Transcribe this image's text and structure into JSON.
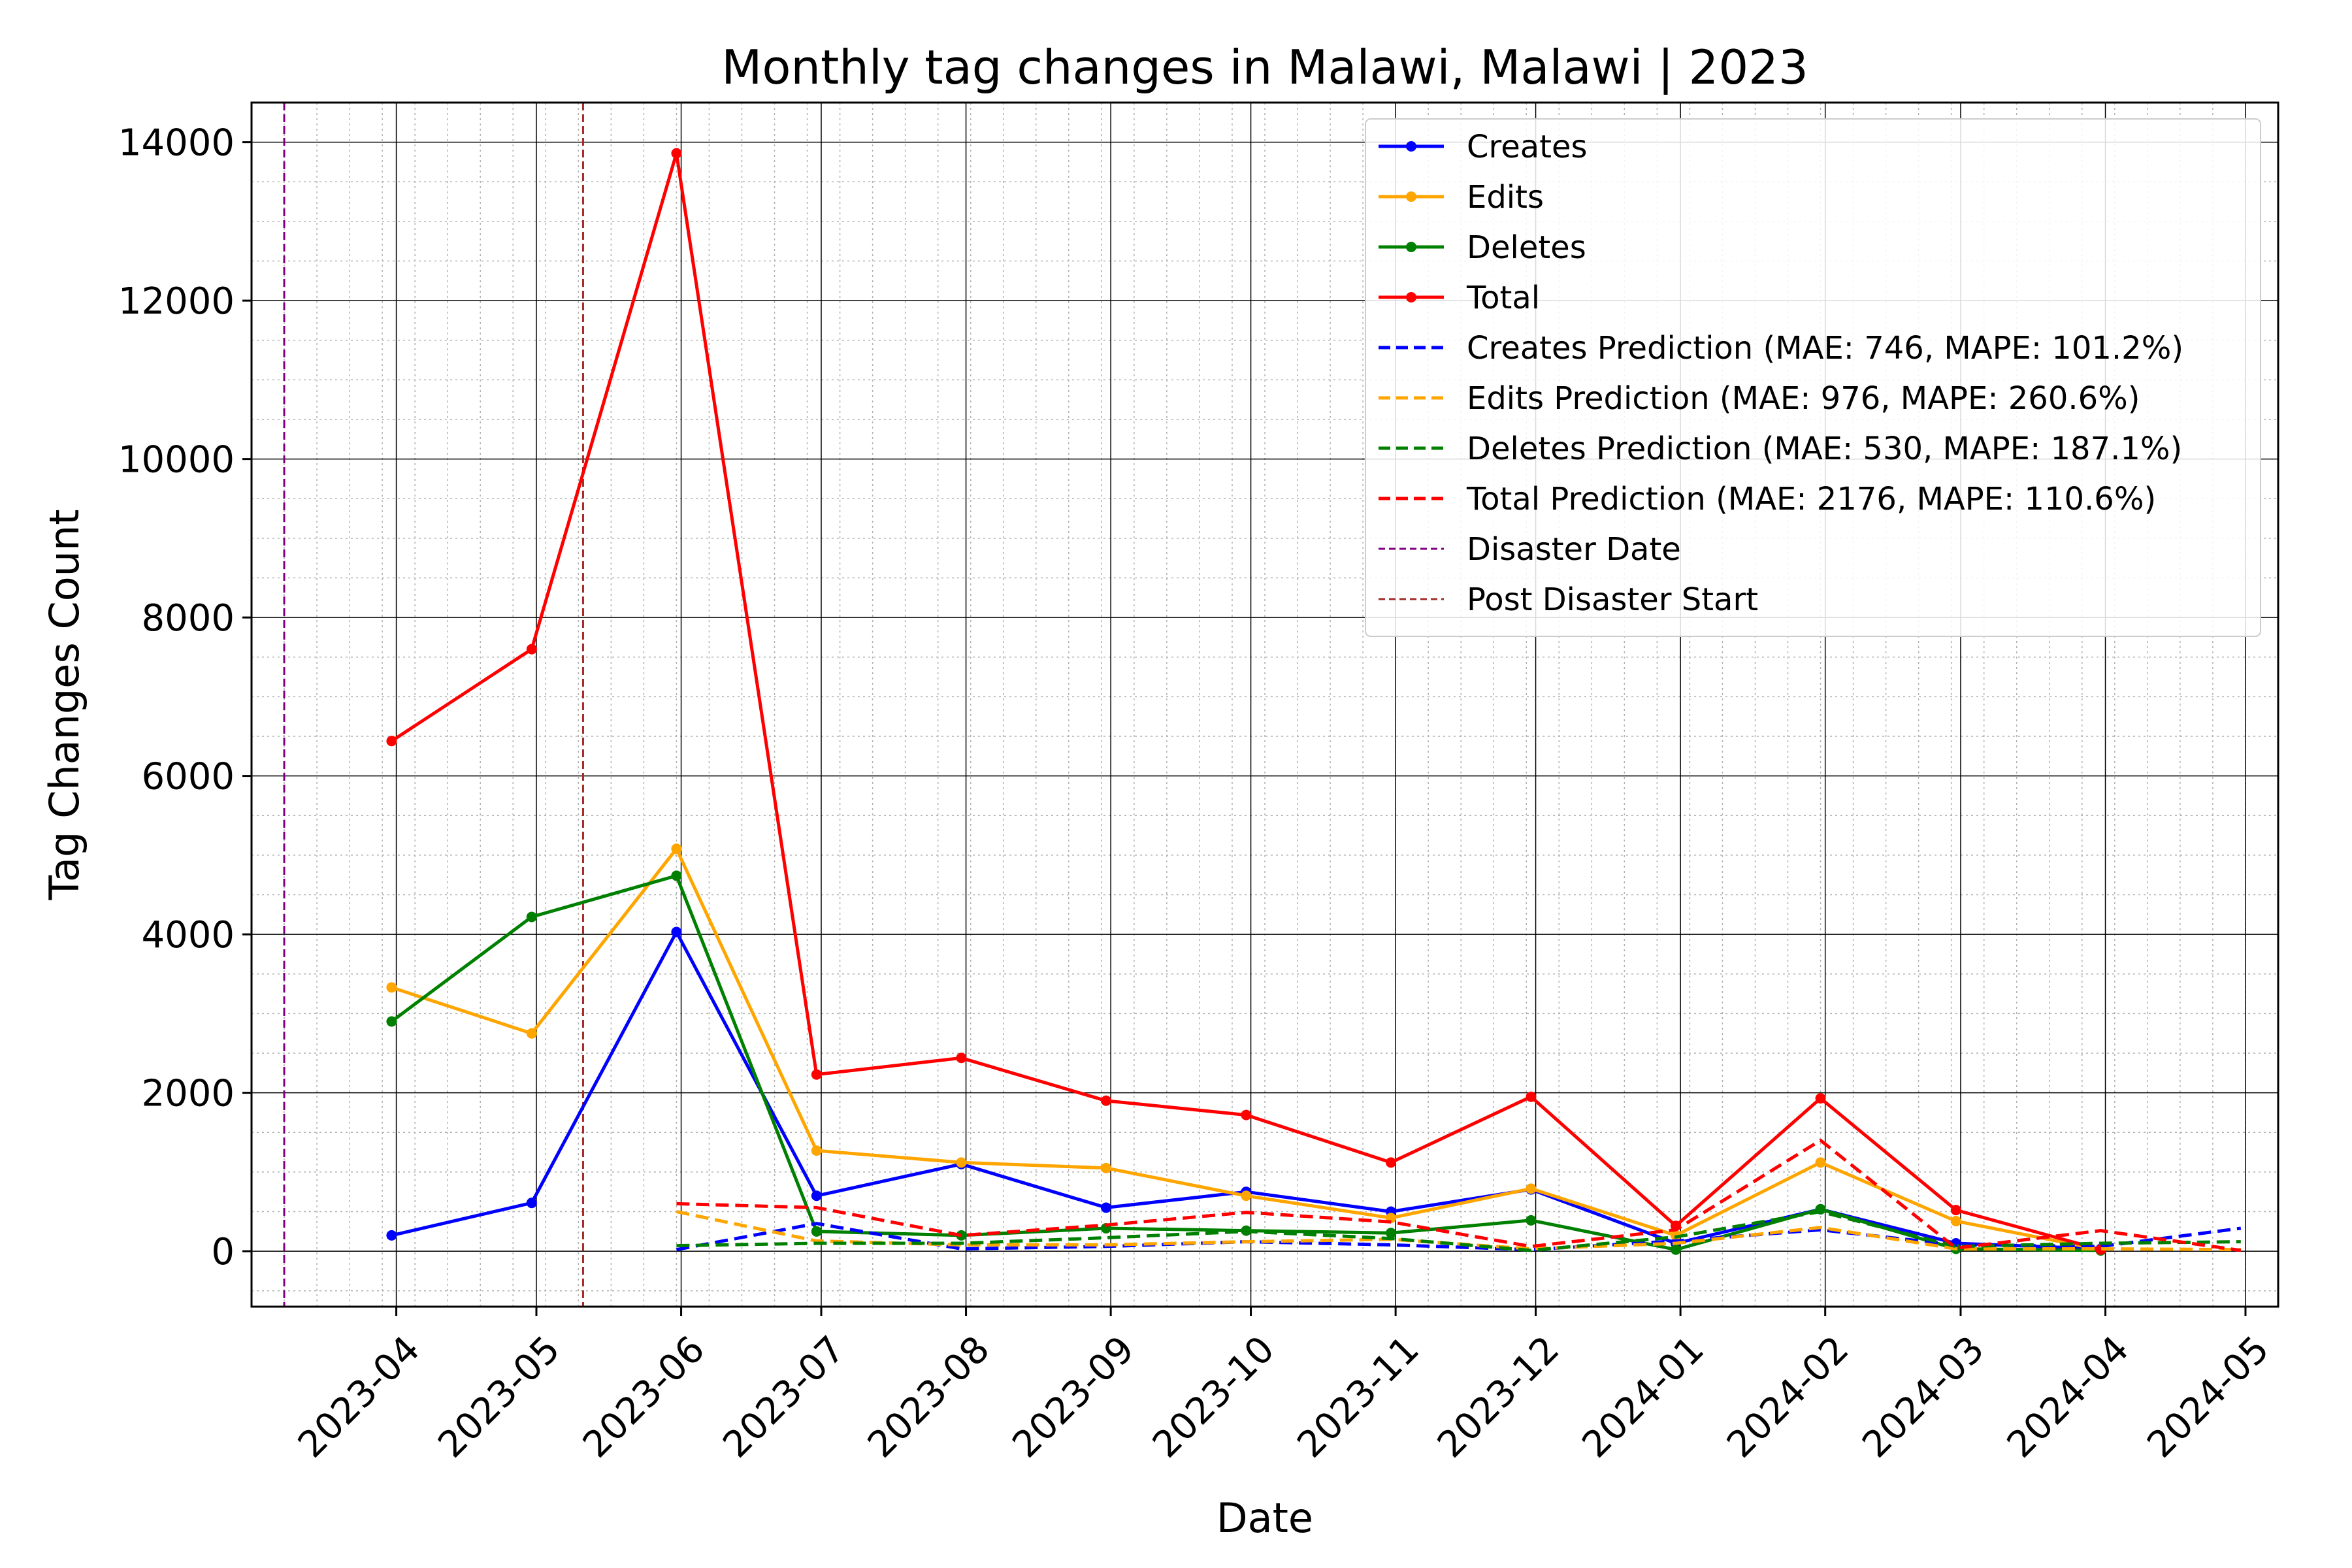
{
  "chart_data": {
    "type": "line",
    "title": "Monthly tag changes in Malawi, Malawi | 2023",
    "xlabel": "Date",
    "ylabel": "Tag Changes Count",
    "x_tick_labels": [
      "2023-04",
      "2023-05",
      "2023-06",
      "2023-07",
      "2023-08",
      "2023-09",
      "2023-10",
      "2023-11",
      "2023-12",
      "2024-01",
      "2024-02",
      "2024-03",
      "2024-04",
      "2024-05"
    ],
    "x_tick_dates": [
      "2023-04-01",
      "2023-05-01",
      "2023-06-01",
      "2023-07-01",
      "2023-08-01",
      "2023-09-01",
      "2023-10-01",
      "2023-11-01",
      "2023-12-01",
      "2024-01-01",
      "2024-02-01",
      "2024-03-01",
      "2024-04-01",
      "2024-05-01"
    ],
    "xlim": [
      "2023-03-01",
      "2024-05-08"
    ],
    "y_ticks": [
      0,
      2000,
      4000,
      6000,
      8000,
      10000,
      12000,
      14000
    ],
    "ylim": [
      -700,
      14500
    ],
    "grid": {
      "major": true,
      "minor": true
    },
    "legend_position": "top-right",
    "series": [
      {
        "name": "Creates",
        "color": "#0000ff",
        "style": "solid",
        "markers": true,
        "x": [
          "2023-03-31",
          "2023-04-30",
          "2023-05-31",
          "2023-06-30",
          "2023-07-31",
          "2023-08-31",
          "2023-09-30",
          "2023-10-31",
          "2023-11-30",
          "2023-12-31",
          "2024-01-31",
          "2024-02-29",
          "2024-03-31"
        ],
        "y": [
          200,
          610,
          4030,
          700,
          1100,
          550,
          750,
          500,
          780,
          100,
          530,
          100,
          30
        ]
      },
      {
        "name": "Edits",
        "color": "#ffa500",
        "style": "solid",
        "markers": true,
        "x": [
          "2023-03-31",
          "2023-04-30",
          "2023-05-31",
          "2023-06-30",
          "2023-07-31",
          "2023-08-31",
          "2023-09-30",
          "2023-10-31",
          "2023-11-30",
          "2023-12-31",
          "2024-01-31",
          "2024-02-29",
          "2024-03-31"
        ],
        "y": [
          3330,
          2750,
          5080,
          1270,
          1120,
          1050,
          700,
          420,
          790,
          200,
          1120,
          380,
          20
        ]
      },
      {
        "name": "Deletes",
        "color": "#008000",
        "style": "solid",
        "markers": true,
        "x": [
          "2023-03-31",
          "2023-04-30",
          "2023-05-31",
          "2023-06-30",
          "2023-07-31",
          "2023-08-31",
          "2023-09-30",
          "2023-10-31",
          "2023-11-30",
          "2023-12-31",
          "2024-01-31",
          "2024-02-29",
          "2024-03-31"
        ],
        "y": [
          2900,
          4220,
          4740,
          250,
          200,
          290,
          260,
          230,
          390,
          20,
          530,
          30,
          10
        ]
      },
      {
        "name": "Total",
        "color": "#ff0000",
        "style": "solid",
        "markers": true,
        "x": [
          "2023-03-31",
          "2023-04-30",
          "2023-05-31",
          "2023-06-30",
          "2023-07-31",
          "2023-08-31",
          "2023-09-30",
          "2023-10-31",
          "2023-11-30",
          "2023-12-31",
          "2024-01-31",
          "2024-02-29",
          "2024-03-31"
        ],
        "y": [
          6440,
          7600,
          13860,
          2230,
          2440,
          1900,
          1720,
          1120,
          1950,
          320,
          1930,
          520,
          20
        ]
      },
      {
        "name": "Creates Prediction (MAE: 746, MAPE: 101.2%)",
        "color": "#0000ff",
        "style": "dashed",
        "markers": false,
        "x": [
          "2023-05-31",
          "2023-06-30",
          "2023-07-31",
          "2023-08-31",
          "2023-09-30",
          "2023-10-31",
          "2023-11-30",
          "2023-12-31",
          "2024-01-31",
          "2024-02-29",
          "2024-03-31",
          "2024-04-30"
        ],
        "y": [
          20,
          350,
          30,
          60,
          120,
          80,
          20,
          130,
          270,
          80,
          60,
          290
        ]
      },
      {
        "name": "Edits Prediction (MAE: 976, MAPE: 260.6%)",
        "color": "#ffa500",
        "style": "dashed",
        "markers": false,
        "x": [
          "2023-05-31",
          "2023-06-30",
          "2023-07-31",
          "2023-08-31",
          "2023-09-30",
          "2023-10-31",
          "2023-11-30",
          "2023-12-31",
          "2024-01-31",
          "2024-02-29",
          "2024-03-31",
          "2024-04-30"
        ],
        "y": [
          500,
          130,
          80,
          80,
          120,
          150,
          30,
          100,
          300,
          30,
          30,
          20
        ]
      },
      {
        "name": "Deletes Prediction (MAE: 530, MAPE: 187.1%)",
        "color": "#008000",
        "style": "dashed",
        "markers": false,
        "x": [
          "2023-05-31",
          "2023-06-30",
          "2023-07-31",
          "2023-08-31",
          "2023-09-30",
          "2023-10-31",
          "2023-11-30",
          "2023-12-31",
          "2024-01-31",
          "2024-02-29",
          "2024-03-31",
          "2024-04-30"
        ],
        "y": [
          70,
          100,
          100,
          170,
          250,
          160,
          10,
          180,
          500,
          60,
          100,
          120
        ]
      },
      {
        "name": "Total Prediction (MAE: 2176, MAPE: 110.6%)",
        "color": "#ff0000",
        "style": "dashed",
        "markers": false,
        "x": [
          "2023-05-31",
          "2023-06-30",
          "2023-07-31",
          "2023-08-31",
          "2023-09-30",
          "2023-10-31",
          "2023-11-30",
          "2023-12-31",
          "2024-01-31",
          "2024-02-29",
          "2024-03-31",
          "2024-04-30"
        ],
        "y": [
          600,
          550,
          200,
          330,
          490,
          370,
          60,
          270,
          1400,
          40,
          260,
          10
        ]
      }
    ],
    "vertical_lines": [
      {
        "name": "Disaster Date",
        "x": "2023-03-08",
        "color": "#800080",
        "style": "dashed"
      },
      {
        "name": "Post Disaster Start",
        "x": "2023-05-11",
        "color": "#a52a2a",
        "style": "dashed"
      }
    ]
  }
}
